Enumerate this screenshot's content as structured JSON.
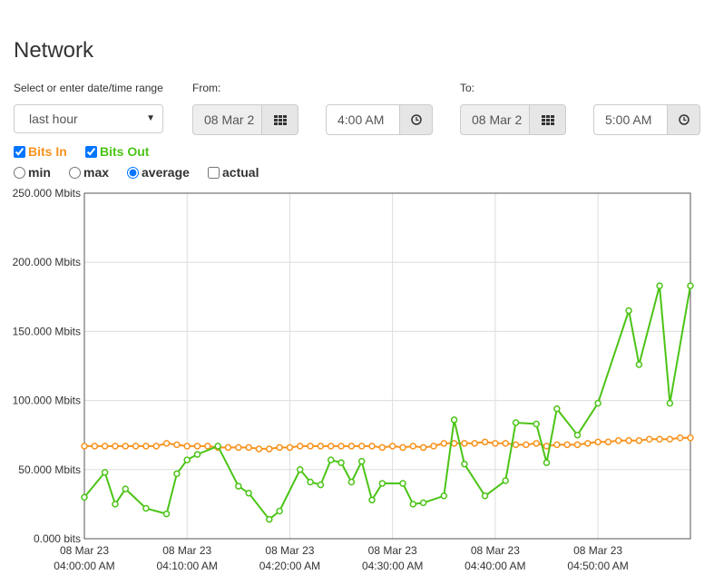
{
  "page": {
    "title": "Network"
  },
  "range": {
    "label": "Select or enter date/time range",
    "selected": "last hour",
    "from_label": "From:",
    "from_date": "08 Mar 2",
    "from_time": "4:00 AM",
    "to_label": "To:",
    "to_date": "08 Mar 2",
    "to_time": "5:00 AM"
  },
  "series_toggles": [
    {
      "label": "Bits In",
      "checked": true,
      "color": "#f7931e"
    },
    {
      "label": "Bits Out",
      "checked": true,
      "color": "#4cc417"
    }
  ],
  "modes": [
    {
      "label": "min",
      "checked": false
    },
    {
      "label": "max",
      "checked": false
    },
    {
      "label": "average",
      "checked": true
    },
    {
      "label": "actual",
      "checked": false,
      "kind": "checkbox"
    }
  ],
  "icons": {
    "calendar": "calendar-icon",
    "clock": "clock-icon"
  },
  "chart_data": {
    "type": "line",
    "ylim": [
      0,
      250
    ],
    "y_ticks": [
      "0.000 bits",
      "50.000 Mbits",
      "100.000 Mbits",
      "150.000 Mbits",
      "200.000 Mbits",
      "250.000 Mbits"
    ],
    "x_ticks": [
      {
        "date": "08 Mar 23",
        "time": "04:00:00 AM"
      },
      {
        "date": "08 Mar 23",
        "time": "04:10:00 AM"
      },
      {
        "date": "08 Mar 23",
        "time": "04:20:00 AM"
      },
      {
        "date": "08 Mar 23",
        "time": "04:30:00 AM"
      },
      {
        "date": "08 Mar 23",
        "time": "04:40:00 AM"
      },
      {
        "date": "08 Mar 23",
        "time": "04:50:00 AM"
      }
    ],
    "xlim_minutes": [
      0,
      59
    ],
    "grid": true,
    "series": [
      {
        "name": "Bits In",
        "color": "#f7931e",
        "x": [
          0,
          1,
          2,
          3,
          4,
          5,
          6,
          7,
          8,
          9,
          10,
          11,
          12,
          13,
          14,
          15,
          16,
          17,
          18,
          19,
          20,
          21,
          22,
          23,
          24,
          25,
          26,
          27,
          28,
          29,
          30,
          31,
          32,
          33,
          34,
          35,
          36,
          37,
          38,
          39,
          40,
          41,
          42,
          43,
          44,
          45,
          46,
          47,
          48,
          49,
          50,
          51,
          52,
          53,
          54,
          55,
          56,
          57,
          58,
          59
        ],
        "values": [
          67,
          67,
          67,
          67,
          67,
          67,
          67,
          67,
          69,
          68,
          67,
          67,
          67,
          66,
          66,
          66,
          66,
          65,
          65,
          66,
          66,
          67,
          67,
          67,
          67,
          67,
          67,
          67,
          67,
          66,
          67,
          66,
          67,
          66,
          67,
          69,
          69,
          69,
          69,
          70,
          69,
          69,
          68,
          68,
          69,
          67,
          68,
          68,
          68,
          69,
          70,
          70,
          71,
          71,
          71,
          72,
          72,
          72,
          73,
          73
        ]
      },
      {
        "name": "Bits Out",
        "color": "#4cc417",
        "x": [
          0,
          2,
          3,
          4,
          6,
          8,
          9,
          10,
          11,
          13,
          15,
          16,
          18,
          19,
          21,
          22,
          23,
          24,
          25,
          26,
          27,
          28,
          29,
          31,
          32,
          33,
          35,
          36,
          37,
          39,
          41,
          42,
          44,
          45,
          46,
          48,
          50,
          53,
          54,
          56,
          57,
          59
        ],
        "values": [
          30,
          48,
          25,
          36,
          22,
          18,
          47,
          57,
          61,
          67,
          38,
          33,
          14,
          20,
          50,
          41,
          39,
          57,
          55,
          41,
          56,
          28,
          40,
          40,
          25,
          26,
          31,
          86,
          54,
          31,
          42,
          84,
          83,
          55,
          94,
          75,
          98,
          165,
          126,
          183,
          98,
          183
        ]
      }
    ]
  }
}
